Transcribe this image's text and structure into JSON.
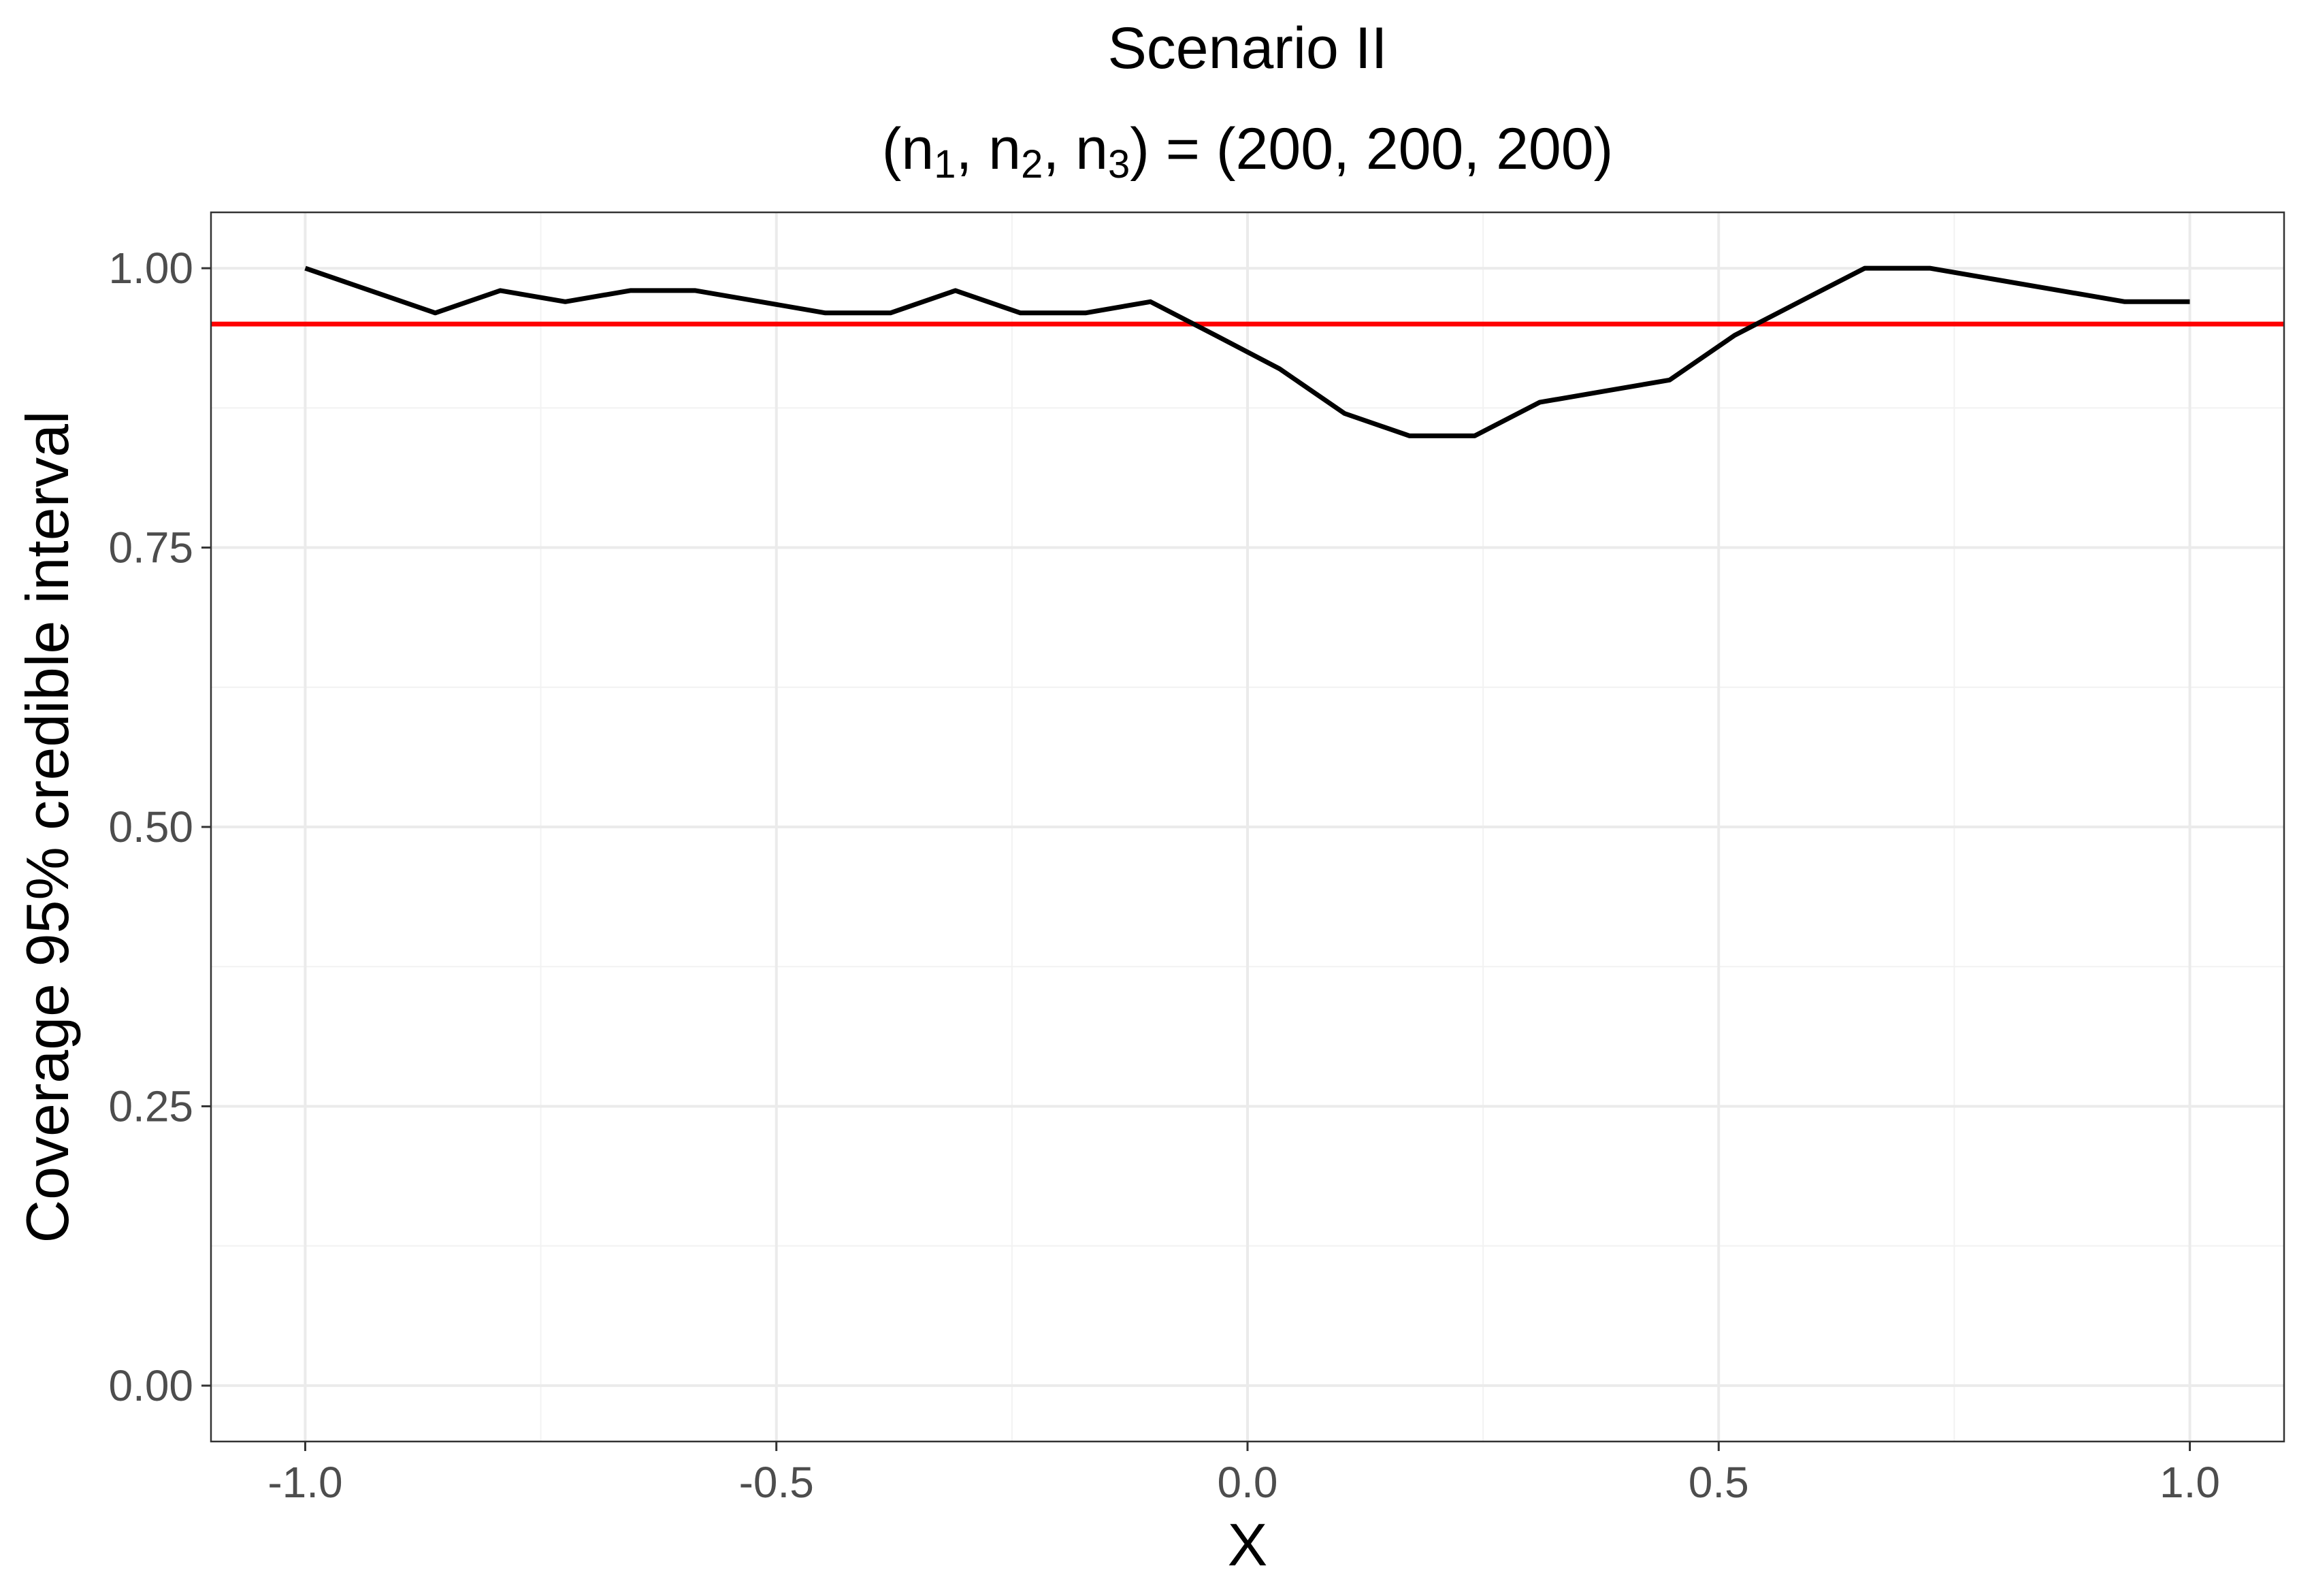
{
  "chart_data": {
    "type": "line",
    "title": "Scenario II",
    "subtitle_parts": [
      "(n",
      "1",
      ", n",
      "2",
      ", n",
      "3",
      ") = (200, 200, 200)"
    ],
    "xlabel": "X",
    "ylabel": "Coverage 95% credible interval",
    "xlim": [
      -1.1,
      1.1
    ],
    "ylim": [
      -0.05,
      1.05
    ],
    "x_ticks": [
      -1.0,
      -0.5,
      0.0,
      0.5,
      1.0
    ],
    "x_tick_labels": [
      "-1.0",
      "-0.5",
      "0.0",
      "0.5",
      "1.0"
    ],
    "y_ticks": [
      0.0,
      0.25,
      0.5,
      0.75,
      1.0
    ],
    "y_tick_labels": [
      "0.00",
      "0.25",
      "0.50",
      "0.75",
      "1.00"
    ],
    "grid": true,
    "line_color": "#000000",
    "series": [
      {
        "x": [
          -1.0,
          -0.931,
          -0.862,
          -0.793,
          -0.724,
          -0.655,
          -0.586,
          -0.517,
          -0.448,
          -0.379,
          -0.31,
          -0.241,
          -0.172,
          -0.103,
          -0.034,
          0.034,
          0.103,
          0.172,
          0.241,
          0.31,
          0.379,
          0.448,
          0.517,
          0.586,
          0.655,
          0.724,
          0.793,
          0.862,
          0.931,
          1.0
        ],
        "y": [
          1.0,
          0.98,
          0.96,
          0.98,
          0.97,
          0.98,
          0.98,
          0.97,
          0.96,
          0.96,
          0.98,
          0.96,
          0.96,
          0.97,
          0.94,
          0.91,
          0.87,
          0.85,
          0.85,
          0.88,
          0.89,
          0.9,
          0.94,
          0.97,
          1.0,
          1.0,
          0.99,
          0.98,
          0.97,
          0.97
        ]
      }
    ],
    "reference_line": {
      "y": 0.95,
      "color": "#ff0000"
    }
  }
}
